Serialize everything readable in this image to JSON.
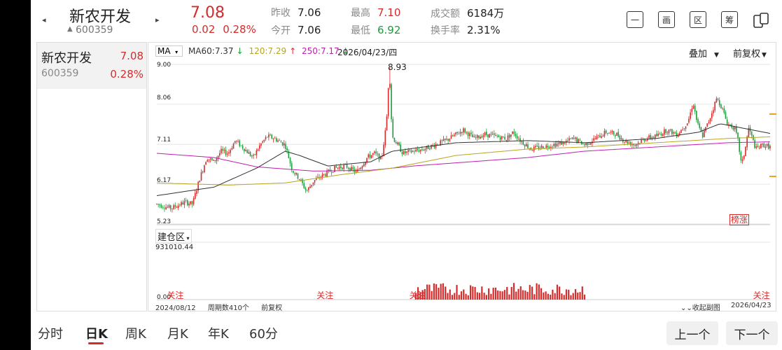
{
  "header": {
    "name": "新农开发",
    "code": "600359",
    "price": "7.08",
    "change": "0.02",
    "change_pct": "0.28%",
    "prev_close_label": "昨收",
    "prev_close": "7.06",
    "open_label": "今开",
    "open": "7.06",
    "high_label": "最高",
    "high": "7.10",
    "low_label": "最低",
    "low": "6.92",
    "volume_label": "成交额",
    "volume": "6184万",
    "turnover_label": "换手率",
    "turnover": "2.31%",
    "tools": [
      "一",
      "画",
      "区",
      "筹"
    ],
    "tool_icons": [
      "minus-icon",
      "draw-icon",
      "region-icon",
      "chips-icon",
      "multi-window-icon"
    ]
  },
  "watchlist": [
    {
      "name": "新农开发",
      "price": "7.08",
      "code": "600359",
      "pct": "0.28%"
    }
  ],
  "chart": {
    "indicator": "MA",
    "ma60_label": "MA60:7.37",
    "ma120_label": "120:7.29",
    "ma250_label": "250:7.17",
    "date": "2026/04/23/四",
    "adjust_a": "叠加",
    "adjust_b": "前复权",
    "ymax_label": "9.00",
    "y2_label": "8.06",
    "y3_label": "7.11",
    "y4_label": "6.17",
    "ymin_label": "5.23",
    "peak_label": "8.93",
    "rank_tag": "榜涨",
    "sub_indicator": "建仓区",
    "sub_value": "931010.44",
    "sub_zero": "0.00",
    "focus_label": "关注",
    "start_date": "2024/08/12",
    "period_count": "周期数410个",
    "adjust_mode": "前复权",
    "fold_label": "收起副图",
    "end_date": "2026/04/23",
    "colors": {
      "up": "#d62b2b",
      "down": "#1e9b3c",
      "ma60": "#333333",
      "ma120": "#b7a520",
      "ma250": "#c020b0"
    }
  },
  "chart_data": {
    "type": "candlestick",
    "ylim": [
      5.23,
      9.0
    ],
    "yticks": [
      "9.00",
      "8.06",
      "7.11",
      "6.17",
      "5.23"
    ],
    "price_path": [
      [
        0,
        5.7
      ],
      [
        20,
        5.6
      ],
      [
        40,
        5.75
      ],
      [
        50,
        5.7
      ],
      [
        60,
        6.3
      ],
      [
        70,
        6.8
      ],
      [
        80,
        6.7
      ],
      [
        90,
        6.95
      ],
      [
        100,
        6.9
      ],
      [
        110,
        7.2
      ],
      [
        120,
        7.05
      ],
      [
        135,
        6.8
      ],
      [
        145,
        7.1
      ],
      [
        155,
        7.3
      ],
      [
        165,
        7.25
      ],
      [
        180,
        7.1
      ],
      [
        190,
        6.5
      ],
      [
        200,
        6.3
      ],
      [
        210,
        6.0
      ],
      [
        220,
        6.25
      ],
      [
        235,
        6.4
      ],
      [
        250,
        6.55
      ],
      [
        265,
        6.6
      ],
      [
        280,
        6.45
      ],
      [
        295,
        6.8
      ],
      [
        305,
        6.9
      ],
      [
        315,
        6.75
      ],
      [
        322,
        7.6
      ],
      [
        326,
        8.93
      ],
      [
        330,
        7.3
      ],
      [
        345,
        6.9
      ],
      [
        360,
        6.95
      ],
      [
        375,
        7.0
      ],
      [
        390,
        7.1
      ],
      [
        405,
        7.2
      ],
      [
        420,
        7.35
      ],
      [
        430,
        7.45
      ],
      [
        445,
        7.25
      ],
      [
        460,
        7.35
      ],
      [
        475,
        7.3
      ],
      [
        490,
        7.25
      ],
      [
        500,
        7.4
      ],
      [
        510,
        7.2
      ],
      [
        525,
        7.0
      ],
      [
        540,
        7.05
      ],
      [
        555,
        7.1
      ],
      [
        570,
        7.15
      ],
      [
        585,
        7.25
      ],
      [
        600,
        7.1
      ],
      [
        615,
        7.25
      ],
      [
        630,
        7.4
      ],
      [
        645,
        7.35
      ],
      [
        655,
        7.2
      ],
      [
        670,
        7.1
      ],
      [
        685,
        7.25
      ],
      [
        700,
        7.3
      ],
      [
        715,
        7.45
      ],
      [
        730,
        7.35
      ],
      [
        745,
        7.65
      ],
      [
        752,
        8.1
      ],
      [
        758,
        7.6
      ],
      [
        765,
        7.3
      ],
      [
        775,
        7.7
      ],
      [
        785,
        8.2
      ],
      [
        792,
        8.0
      ],
      [
        800,
        7.6
      ],
      [
        810,
        7.5
      ],
      [
        815,
        7.2
      ],
      [
        820,
        6.6
      ],
      [
        825,
        7.0
      ],
      [
        830,
        7.5
      ],
      [
        840,
        7.0
      ],
      [
        850,
        7.1
      ],
      [
        860,
        7.05
      ]
    ],
    "ma60_path": [
      [
        0,
        5.9
      ],
      [
        80,
        6.1
      ],
      [
        140,
        6.55
      ],
      [
        180,
        6.95
      ],
      [
        200,
        6.85
      ],
      [
        240,
        6.6
      ],
      [
        300,
        6.7
      ],
      [
        330,
        6.95
      ],
      [
        420,
        7.15
      ],
      [
        520,
        7.2
      ],
      [
        600,
        7.15
      ],
      [
        700,
        7.25
      ],
      [
        760,
        7.4
      ],
      [
        790,
        7.6
      ],
      [
        820,
        7.5
      ],
      [
        860,
        7.37
      ]
    ],
    "ma120_path": [
      [
        0,
        6.2
      ],
      [
        100,
        6.15
      ],
      [
        180,
        6.2
      ],
      [
        260,
        6.4
      ],
      [
        330,
        6.55
      ],
      [
        420,
        6.85
      ],
      [
        520,
        7.0
      ],
      [
        600,
        7.05
      ],
      [
        700,
        7.15
      ],
      [
        800,
        7.25
      ],
      [
        860,
        7.29
      ]
    ],
    "ma250_path": [
      [
        0,
        6.9
      ],
      [
        80,
        6.8
      ],
      [
        140,
        6.58
      ],
      [
        220,
        6.48
      ],
      [
        300,
        6.5
      ],
      [
        360,
        6.6
      ],
      [
        440,
        6.7
      ],
      [
        520,
        6.8
      ],
      [
        600,
        6.95
      ],
      [
        700,
        7.05
      ],
      [
        800,
        7.15
      ],
      [
        860,
        7.17
      ]
    ],
    "focus_markers_x": [
      20,
      230,
      360,
      842
    ]
  },
  "tabs": [
    "分时",
    "日K",
    "周K",
    "月K",
    "年K",
    "60分"
  ],
  "active_tab": "日K",
  "prev_label": "上一个",
  "next_label": "下一个"
}
